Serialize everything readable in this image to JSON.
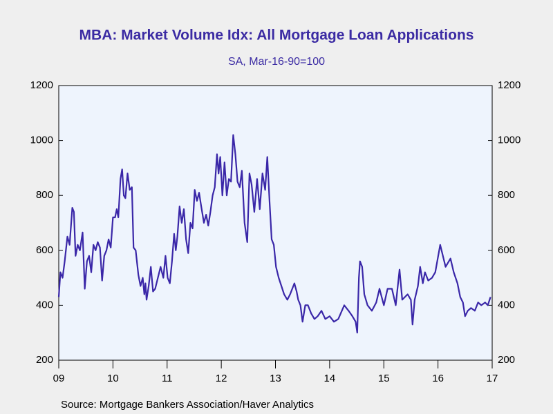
{
  "chart_data": {
    "type": "line",
    "title": "MBA: Market Volume Idx: All Mortgage Loan Applications",
    "subtitle": "SA, Mar-16-90=100",
    "source": "Source:  Mortgage Bankers Association/Haver Analytics",
    "color": "#3a27a8",
    "xlim": [
      2009,
      2017
    ],
    "xticks": [
      {
        "value": 2009,
        "label": "09"
      },
      {
        "value": 2010,
        "label": "10"
      },
      {
        "value": 2011,
        "label": "11"
      },
      {
        "value": 2012,
        "label": "12"
      },
      {
        "value": 2013,
        "label": "13"
      },
      {
        "value": 2014,
        "label": "14"
      },
      {
        "value": 2015,
        "label": "15"
      },
      {
        "value": 2016,
        "label": "16"
      },
      {
        "value": 2017,
        "label": "17"
      }
    ],
    "ylim": [
      200,
      1200
    ],
    "yticks": [
      200,
      400,
      600,
      800,
      1000,
      1200
    ],
    "y2lim": [
      200,
      1200
    ],
    "y2ticks": [
      200,
      400,
      600,
      800,
      1000,
      1200
    ],
    "x": [
      2009.0,
      2009.03,
      2009.07,
      2009.11,
      2009.16,
      2009.2,
      2009.25,
      2009.28,
      2009.31,
      2009.35,
      2009.39,
      2009.44,
      2009.48,
      2009.52,
      2009.56,
      2009.6,
      2009.64,
      2009.68,
      2009.72,
      2009.76,
      2009.8,
      2009.84,
      2009.88,
      2009.92,
      2009.96,
      2010.0,
      2010.04,
      2010.07,
      2010.1,
      2010.14,
      2010.17,
      2010.2,
      2010.23,
      2010.27,
      2010.31,
      2010.35,
      2010.38,
      2010.42,
      2010.47,
      2010.51,
      2010.55,
      2010.58,
      2010.6,
      2010.62,
      2010.66,
      2010.7,
      2010.74,
      2010.78,
      2010.83,
      2010.88,
      2010.93,
      2010.97,
      2011.01,
      2011.05,
      2011.09,
      2011.13,
      2011.16,
      2011.19,
      2011.23,
      2011.27,
      2011.31,
      2011.35,
      2011.39,
      2011.43,
      2011.47,
      2011.51,
      2011.55,
      2011.59,
      2011.63,
      2011.68,
      2011.72,
      2011.76,
      2011.8,
      2011.84,
      2011.88,
      2011.92,
      2011.95,
      2011.98,
      2012.02,
      2012.06,
      2012.1,
      2012.14,
      2012.18,
      2012.22,
      2012.26,
      2012.3,
      2012.34,
      2012.38,
      2012.43,
      2012.48,
      2012.52,
      2012.56,
      2012.61,
      2012.66,
      2012.71,
      2012.76,
      2012.81,
      2012.85,
      2012.89,
      2012.93,
      2012.97,
      2013.01,
      2013.06,
      2013.11,
      2013.16,
      2013.22,
      2013.27,
      2013.31,
      2013.35,
      2013.39,
      2013.42,
      2013.46,
      2013.5,
      2013.55,
      2013.6,
      2013.66,
      2013.72,
      2013.78,
      2013.85,
      2013.92,
      2014.0,
      2014.08,
      2014.16,
      2014.27,
      2014.35,
      2014.42,
      2014.48,
      2014.51,
      2014.54,
      2014.56,
      2014.6,
      2014.64,
      2014.7,
      2014.78,
      2014.86,
      2014.92,
      2015.0,
      2015.07,
      2015.15,
      2015.22,
      2015.29,
      2015.34,
      2015.44,
      2015.5,
      2015.53,
      2015.57,
      2015.63,
      2015.67,
      2015.72,
      2015.76,
      2015.82,
      2015.89,
      2015.95,
      2016.04,
      2016.09,
      2016.14,
      2016.23,
      2016.29,
      2016.36,
      2016.41,
      2016.46,
      2016.5,
      2016.55,
      2016.61,
      2016.68,
      2016.74,
      2016.8,
      2016.87,
      2016.92,
      2016.97
    ],
    "values": [
      430,
      520,
      500,
      560,
      650,
      620,
      755,
      740,
      580,
      620,
      600,
      665,
      460,
      560,
      580,
      520,
      620,
      600,
      630,
      610,
      490,
      580,
      600,
      640,
      610,
      720,
      720,
      750,
      720,
      860,
      895,
      800,
      790,
      880,
      820,
      830,
      610,
      600,
      510,
      470,
      500,
      440,
      480,
      420,
      470,
      540,
      450,
      460,
      500,
      540,
      500,
      580,
      500,
      480,
      560,
      660,
      600,
      650,
      760,
      700,
      750,
      640,
      590,
      700,
      680,
      820,
      780,
      810,
      760,
      700,
      730,
      690,
      740,
      800,
      830,
      950,
      880,
      940,
      800,
      920,
      800,
      860,
      850,
      1020,
      950,
      850,
      830,
      890,
      700,
      630,
      880,
      840,
      740,
      860,
      750,
      880,
      820,
      940,
      780,
      640,
      620,
      540,
      500,
      470,
      440,
      420,
      440,
      460,
      480,
      450,
      420,
      400,
      340,
      400,
      400,
      370,
      350,
      360,
      380,
      350,
      360,
      340,
      350,
      400,
      380,
      360,
      340,
      300,
      500,
      560,
      540,
      440,
      400,
      380,
      410,
      460,
      400,
      460,
      460,
      400,
      530,
      420,
      440,
      420,
      330,
      420,
      470,
      540,
      480,
      520,
      490,
      500,
      520,
      620,
      580,
      540,
      570,
      520,
      480,
      430,
      410,
      360,
      380,
      390,
      380,
      410,
      400,
      410,
      400,
      430
    ]
  }
}
